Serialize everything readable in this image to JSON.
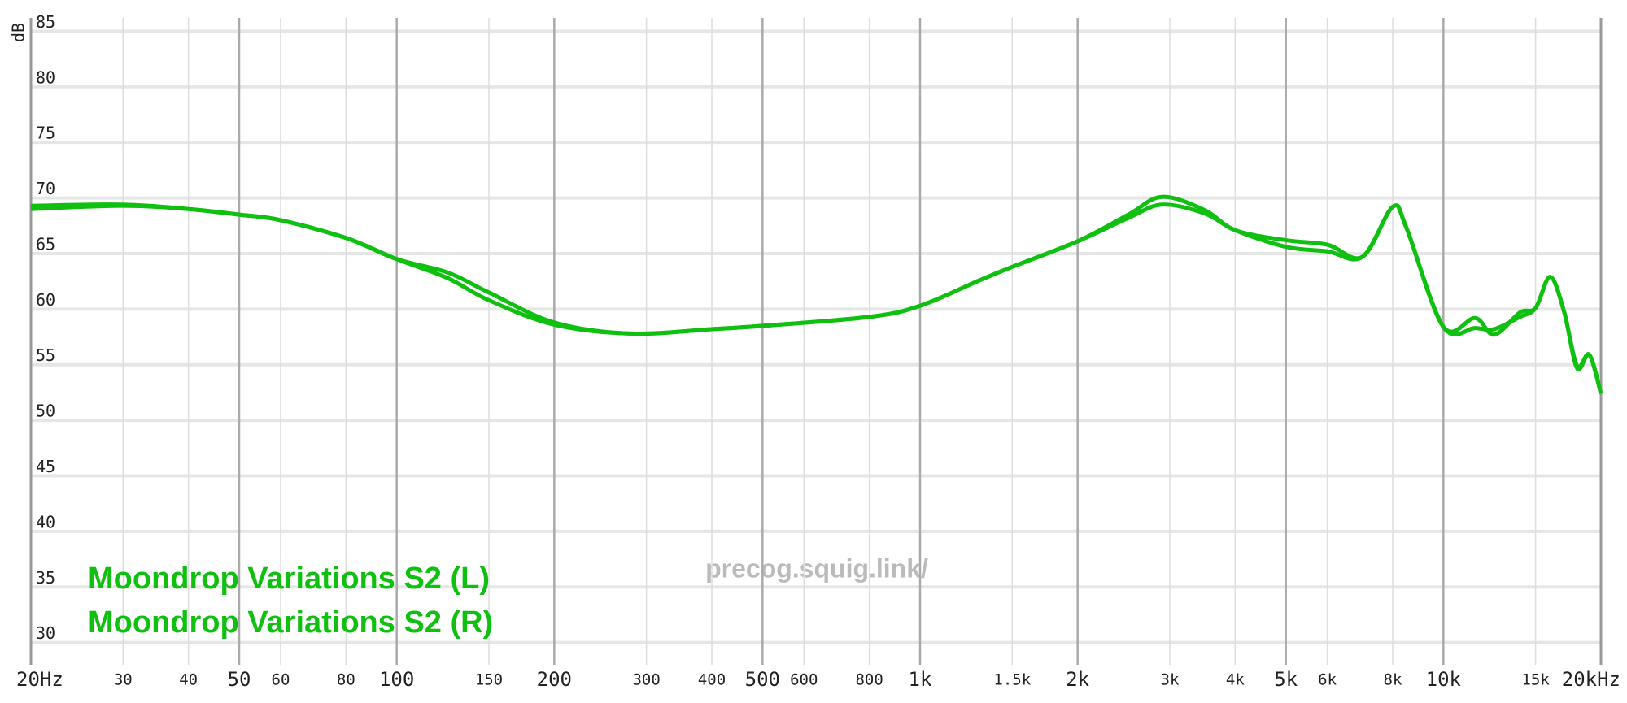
{
  "chart_data": {
    "type": "line",
    "y_label": "dB",
    "watermark": "precog.squig.link/",
    "x": [
      20,
      30,
      40,
      50,
      60,
      80,
      100,
      125,
      150,
      200,
      280,
      400,
      500,
      800,
      1000,
      1300,
      1500,
      2000,
      2500,
      2900,
      3500,
      4000,
      5000,
      6000,
      7000,
      8000,
      8500,
      10000,
      11500,
      12500,
      14000,
      15000,
      16000,
      17000,
      18000,
      19000,
      20000
    ],
    "series": [
      {
        "name": "Moondrop Variations S2 (L)",
        "color": "#10c010",
        "values": [
          69.0,
          69.3,
          69.0,
          68.5,
          68.0,
          66.4,
          64.5,
          63.3,
          61.5,
          58.8,
          57.8,
          58.2,
          58.5,
          59.3,
          60.3,
          62.6,
          63.8,
          66.1,
          68.5,
          70.1,
          68.9,
          67.1,
          66.2,
          65.8,
          64.7,
          69.2,
          67.3,
          58.4,
          59.2,
          57.7,
          59.7,
          60.1,
          62.9,
          59.8,
          54.7,
          55.9,
          52.4
        ]
      },
      {
        "name": "Moondrop Variations S2 (R)",
        "color": "#10c010",
        "values": [
          69.3,
          69.4,
          69.0,
          68.5,
          68.0,
          66.4,
          64.5,
          62.8,
          60.8,
          58.6,
          57.8,
          58.2,
          58.5,
          59.3,
          60.3,
          62.6,
          63.8,
          66.1,
          68.2,
          69.4,
          68.6,
          67.1,
          65.6,
          65.2,
          64.7,
          69.2,
          67.3,
          58.4,
          58.3,
          58.2,
          59.3,
          60.1,
          62.9,
          59.8,
          54.9,
          55.9,
          52.4
        ]
      }
    ],
    "xlog": true,
    "xlim": [
      20,
      20000
    ],
    "ylim": [
      28,
      86.2
    ],
    "xticks": [
      {
        "value": 20,
        "label": "20Hz"
      },
      30,
      40,
      50,
      60,
      80,
      100,
      150,
      200,
      300,
      400,
      500,
      600,
      800,
      {
        "value": 1000,
        "label": "1k"
      },
      {
        "value": 1500,
        "label": "1.5k"
      },
      {
        "value": 2000,
        "label": "2k"
      },
      {
        "value": 3000,
        "label": "3k"
      },
      {
        "value": 4000,
        "label": "4k"
      },
      {
        "value": 5000,
        "label": "5k"
      },
      {
        "value": 6000,
        "label": "6k"
      },
      {
        "value": 8000,
        "label": "8k"
      },
      {
        "value": 10000,
        "label": "10k"
      },
      {
        "value": 15000,
        "label": "15k"
      },
      {
        "value": 20000,
        "label": "20kHz"
      }
    ],
    "yticks": [
      30,
      35,
      40,
      45,
      50,
      55,
      60,
      65,
      70,
      75,
      80,
      85
    ],
    "grid": true
  }
}
